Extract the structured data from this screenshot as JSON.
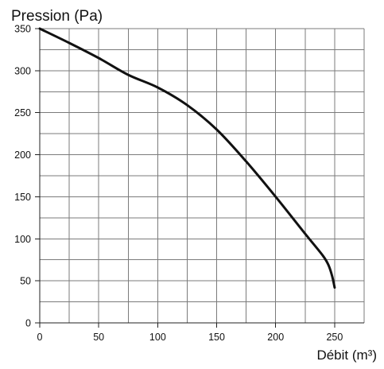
{
  "chart_data": {
    "type": "line",
    "title": "",
    "xlabel": "Débit (m³)",
    "ylabel": "Pression (Pa)",
    "xlim": [
      0,
      275
    ],
    "ylim": [
      0,
      350
    ],
    "x_ticks": [
      0,
      50,
      100,
      150,
      200,
      250
    ],
    "y_ticks": [
      0,
      50,
      100,
      150,
      200,
      250,
      300,
      350
    ],
    "x_minor_step": 25,
    "y_minor_step": 25,
    "grid": true,
    "legend": "none",
    "series": [
      {
        "line_color": "#111111",
        "points": [
          [
            0,
            350
          ],
          [
            25,
            333
          ],
          [
            50,
            315
          ],
          [
            75,
            295
          ],
          [
            100,
            280
          ],
          [
            125,
            259
          ],
          [
            150,
            230
          ],
          [
            175,
            192
          ],
          [
            200,
            150
          ],
          [
            225,
            106
          ],
          [
            240,
            80
          ],
          [
            245,
            68
          ],
          [
            248,
            55
          ],
          [
            250,
            42
          ]
        ]
      }
    ]
  }
}
